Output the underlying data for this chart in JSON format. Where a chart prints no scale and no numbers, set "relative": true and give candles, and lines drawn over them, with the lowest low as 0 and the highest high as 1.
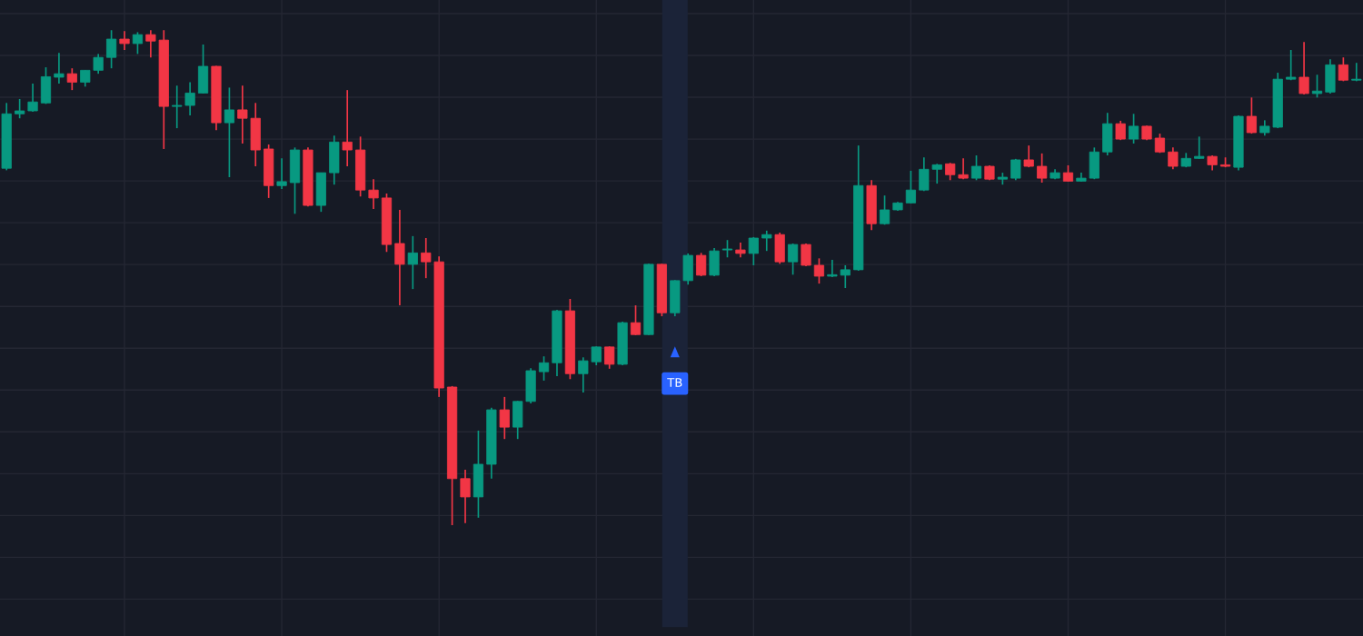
{
  "chart_data": {
    "type": "candlestick",
    "relative": true,
    "grid": true,
    "categories": [
      null,
      null,
      null,
      null,
      null,
      null,
      null,
      null,
      null,
      null,
      null,
      null,
      null,
      null,
      null,
      null,
      null,
      null,
      null,
      null,
      null,
      null,
      null,
      null,
      null,
      null,
      null,
      null,
      null,
      null,
      null,
      null,
      null,
      null,
      null,
      null,
      null,
      null,
      null,
      null,
      null,
      null,
      null,
      null,
      null,
      null,
      null,
      null,
      null,
      null,
      null,
      null,
      null,
      null,
      null,
      null,
      null,
      null,
      null,
      null,
      null,
      null,
      null,
      null,
      null,
      null,
      null,
      null,
      null,
      null,
      null,
      null,
      null,
      null,
      null,
      null,
      null,
      null,
      null,
      null,
      null,
      null,
      null,
      null,
      null,
      null,
      null,
      null,
      null,
      null,
      null,
      null,
      null,
      null,
      null,
      null,
      null,
      null,
      null,
      null,
      null,
      null,
      null,
      null
    ],
    "colors": [
      "#089981",
      "#089981",
      "#089981",
      "#089981",
      "#089981",
      "#f23645",
      "#089981",
      "#089981",
      "#089981",
      "#f23645",
      "#089981",
      "#f23645",
      "#f23645",
      "#089981",
      "#089981",
      "#089981",
      "#f23645",
      "#089981",
      "#f23645",
      "#f23645",
      "#f23645",
      "#089981",
      "#089981",
      "#f23645",
      "#089981",
      "#089981",
      "#f23645",
      "#f23645",
      "#f23645",
      "#f23645",
      "#f23645",
      "#089981",
      "#f23645",
      "#f23645",
      "#f23645",
      "#f23645",
      "#089981",
      "#089981",
      "#f23645",
      "#089981",
      "#089981",
      "#089981",
      "#089981",
      "#f23645",
      "#089981",
      "#089981",
      "#f23645",
      "#089981",
      "#f23645",
      "#089981",
      "#f23645",
      "#089981",
      "#089981",
      "#f23645",
      "#089981",
      "#089981",
      "#f23645",
      "#089981",
      "#089981",
      "#f23645",
      "#089981",
      "#f23645",
      "#f23645",
      "#089981",
      "#089981",
      "#089981",
      "#f23645",
      "#089981",
      "#089981",
      "#089981",
      "#089981",
      "#089981",
      "#f23645",
      "#f23645",
      "#089981",
      "#f23645",
      "#089981",
      "#089981",
      "#f23645",
      "#f23645",
      "#089981",
      "#f23645",
      "#089981",
      "#089981",
      "#089981",
      "#f23645",
      "#089981",
      "#f23645",
      "#f23645",
      "#f23645",
      "#089981",
      "#089981",
      "#f23645",
      "#f23645",
      "#089981",
      "#f23645",
      "#089981",
      "#089981",
      "#089981",
      "#f23645",
      "#089981",
      "#089981",
      "#f23645",
      "#089981"
    ],
    "ohlc": [
      [
        0.721,
        0.853,
        0.717,
        0.831
      ],
      [
        0.831,
        0.861,
        0.822,
        0.837
      ],
      [
        0.837,
        0.892,
        0.835,
        0.855
      ],
      [
        0.853,
        0.925,
        0.851,
        0.906
      ],
      [
        0.905,
        0.954,
        0.892,
        0.912
      ],
      [
        0.912,
        0.923,
        0.879,
        0.895
      ],
      [
        0.895,
        0.919,
        0.886,
        0.919
      ],
      [
        0.919,
        0.952,
        0.912,
        0.945
      ],
      [
        0.945,
        1.0,
        0.923,
        0.982
      ],
      [
        0.982,
        0.998,
        0.96,
        0.973
      ],
      [
        0.973,
        0.996,
        0.952,
        0.991
      ],
      [
        0.991,
        1.0,
        0.945,
        0.978
      ],
      [
        0.98,
        1.0,
        0.76,
        0.846
      ],
      [
        0.846,
        0.888,
        0.802,
        0.848
      ],
      [
        0.848,
        0.895,
        0.828,
        0.873
      ],
      [
        0.873,
        0.971,
        0.872,
        0.927
      ],
      [
        0.927,
        0.928,
        0.798,
        0.813
      ],
      [
        0.813,
        0.884,
        0.703,
        0.839
      ],
      [
        0.839,
        0.888,
        0.771,
        0.822
      ],
      [
        0.822,
        0.853,
        0.725,
        0.758
      ],
      [
        0.76,
        0.769,
        0.661,
        0.686
      ],
      [
        0.686,
        0.741,
        0.679,
        0.694
      ],
      [
        0.692,
        0.763,
        0.629,
        0.758
      ],
      [
        0.758,
        0.763,
        0.644,
        0.646
      ],
      [
        0.646,
        0.712,
        0.633,
        0.712
      ],
      [
        0.712,
        0.787,
        0.688,
        0.774
      ],
      [
        0.774,
        0.879,
        0.725,
        0.758
      ],
      [
        0.758,
        0.785,
        0.664,
        0.677
      ],
      [
        0.677,
        0.699,
        0.639,
        0.661
      ],
      [
        0.661,
        0.67,
        0.552,
        0.567
      ],
      [
        0.569,
        0.637,
        0.444,
        0.527
      ],
      [
        0.527,
        0.584,
        0.477,
        0.55
      ],
      [
        0.55,
        0.58,
        0.499,
        0.532
      ],
      [
        0.532,
        0.543,
        0.259,
        0.277
      ],
      [
        0.279,
        0.281,
        0.0,
        0.094
      ],
      [
        0.094,
        0.112,
        0.004,
        0.057
      ],
      [
        0.057,
        0.191,
        0.015,
        0.123
      ],
      [
        0.123,
        0.237,
        0.094,
        0.233
      ],
      [
        0.233,
        0.259,
        0.174,
        0.198
      ],
      [
        0.198,
        0.251,
        0.174,
        0.25
      ],
      [
        0.25,
        0.317,
        0.246,
        0.312
      ],
      [
        0.31,
        0.341,
        0.292,
        0.328
      ],
      [
        0.328,
        0.435,
        0.301,
        0.433
      ],
      [
        0.433,
        0.457,
        0.295,
        0.306
      ],
      [
        0.306,
        0.339,
        0.268,
        0.332
      ],
      [
        0.33,
        0.361,
        0.323,
        0.36
      ],
      [
        0.36,
        0.361,
        0.316,
        0.325
      ],
      [
        0.325,
        0.411,
        0.323,
        0.409
      ],
      [
        0.409,
        0.444,
        0.384,
        0.385
      ],
      [
        0.385,
        0.528,
        0.384,
        0.527
      ],
      [
        0.527,
        0.528,
        0.422,
        0.429
      ],
      [
        0.429,
        0.495,
        0.422,
        0.494
      ],
      [
        0.494,
        0.549,
        0.486,
        0.545
      ],
      [
        0.545,
        0.55,
        0.503,
        0.505
      ],
      [
        0.505,
        0.56,
        0.503,
        0.554
      ],
      [
        0.556,
        0.576,
        0.541,
        0.558
      ],
      [
        0.556,
        0.571,
        0.541,
        0.549
      ],
      [
        0.549,
        0.582,
        0.525,
        0.58
      ],
      [
        0.58,
        0.595,
        0.554,
        0.587
      ],
      [
        0.587,
        0.591,
        0.528,
        0.532
      ],
      [
        0.532,
        0.569,
        0.506,
        0.567
      ],
      [
        0.567,
        0.569,
        0.523,
        0.525
      ],
      [
        0.525,
        0.539,
        0.488,
        0.503
      ],
      [
        0.503,
        0.536,
        0.501,
        0.506
      ],
      [
        0.505,
        0.525,
        0.479,
        0.516
      ],
      [
        0.516,
        0.767,
        0.514,
        0.686
      ],
      [
        0.686,
        0.697,
        0.596,
        0.609
      ],
      [
        0.609,
        0.666,
        0.607,
        0.637
      ],
      [
        0.637,
        0.653,
        0.635,
        0.651
      ],
      [
        0.651,
        0.716,
        0.65,
        0.677
      ],
      [
        0.677,
        0.743,
        0.675,
        0.719
      ],
      [
        0.719,
        0.73,
        0.69,
        0.728
      ],
      [
        0.73,
        0.732,
        0.697,
        0.708
      ],
      [
        0.708,
        0.741,
        0.699,
        0.701
      ],
      [
        0.701,
        0.747,
        0.697,
        0.725
      ],
      [
        0.725,
        0.727,
        0.697,
        0.699
      ],
      [
        0.699,
        0.712,
        0.688,
        0.703
      ],
      [
        0.701,
        0.74,
        0.697,
        0.738
      ],
      [
        0.738,
        0.767,
        0.723,
        0.725
      ],
      [
        0.725,
        0.751,
        0.692,
        0.701
      ],
      [
        0.701,
        0.719,
        0.699,
        0.712
      ],
      [
        0.712,
        0.727,
        0.694,
        0.695
      ],
      [
        0.695,
        0.712,
        0.694,
        0.701
      ],
      [
        0.701,
        0.763,
        0.699,
        0.754
      ],
      [
        0.754,
        0.833,
        0.747,
        0.811
      ],
      [
        0.811,
        0.817,
        0.778,
        0.78
      ],
      [
        0.78,
        0.831,
        0.771,
        0.806
      ],
      [
        0.806,
        0.807,
        0.778,
        0.78
      ],
      [
        0.782,
        0.791,
        0.752,
        0.754
      ],
      [
        0.754,
        0.763,
        0.719,
        0.725
      ],
      [
        0.725,
        0.752,
        0.723,
        0.741
      ],
      [
        0.741,
        0.785,
        0.74,
        0.745
      ],
      [
        0.745,
        0.747,
        0.717,
        0.728
      ],
      [
        0.728,
        0.743,
        0.723,
        0.725
      ],
      [
        0.723,
        0.828,
        0.717,
        0.826
      ],
      [
        0.826,
        0.864,
        0.791,
        0.793
      ],
      [
        0.793,
        0.818,
        0.787,
        0.806
      ],
      [
        0.804,
        0.914,
        0.802,
        0.901
      ],
      [
        0.901,
        0.96,
        0.899,
        0.905
      ],
      [
        0.905,
        0.976,
        0.87,
        0.872
      ],
      [
        0.872,
        0.91,
        0.864,
        0.877
      ],
      [
        0.875,
        0.941,
        0.872,
        0.93
      ],
      [
        0.93,
        0.945,
        0.897,
        0.899
      ],
      [
        0.899,
        0.934,
        0.897,
        0.901
      ]
    ],
    "annotations": [
      "TB"
    ]
  }
}
